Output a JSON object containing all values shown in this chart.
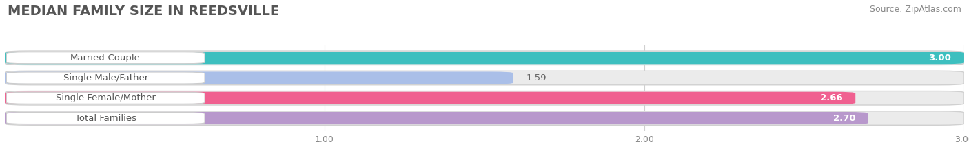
{
  "title": "MEDIAN FAMILY SIZE IN REEDSVILLE",
  "source": "Source: ZipAtlas.com",
  "categories": [
    "Married-Couple",
    "Single Male/Father",
    "Single Female/Mother",
    "Total Families"
  ],
  "values": [
    3.0,
    1.59,
    2.66,
    2.7
  ],
  "bar_colors": [
    "#3dbfbf",
    "#aabfe8",
    "#f06090",
    "#b898cc"
  ],
  "value_labels": [
    "3.00",
    "1.59",
    "2.66",
    "2.70"
  ],
  "label_inside": [
    true,
    false,
    true,
    true
  ],
  "xlim": [
    0,
    3.0
  ],
  "xticks": [
    1.0,
    2.0,
    3.0
  ],
  "xticklabels": [
    "1.00",
    "2.00",
    "3.00"
  ],
  "background_color": "#ffffff",
  "bar_bg_color": "#e8e8e8",
  "title_fontsize": 14,
  "source_fontsize": 9,
  "label_fontsize": 9.5,
  "value_fontsize": 9.5,
  "bar_height": 0.62
}
